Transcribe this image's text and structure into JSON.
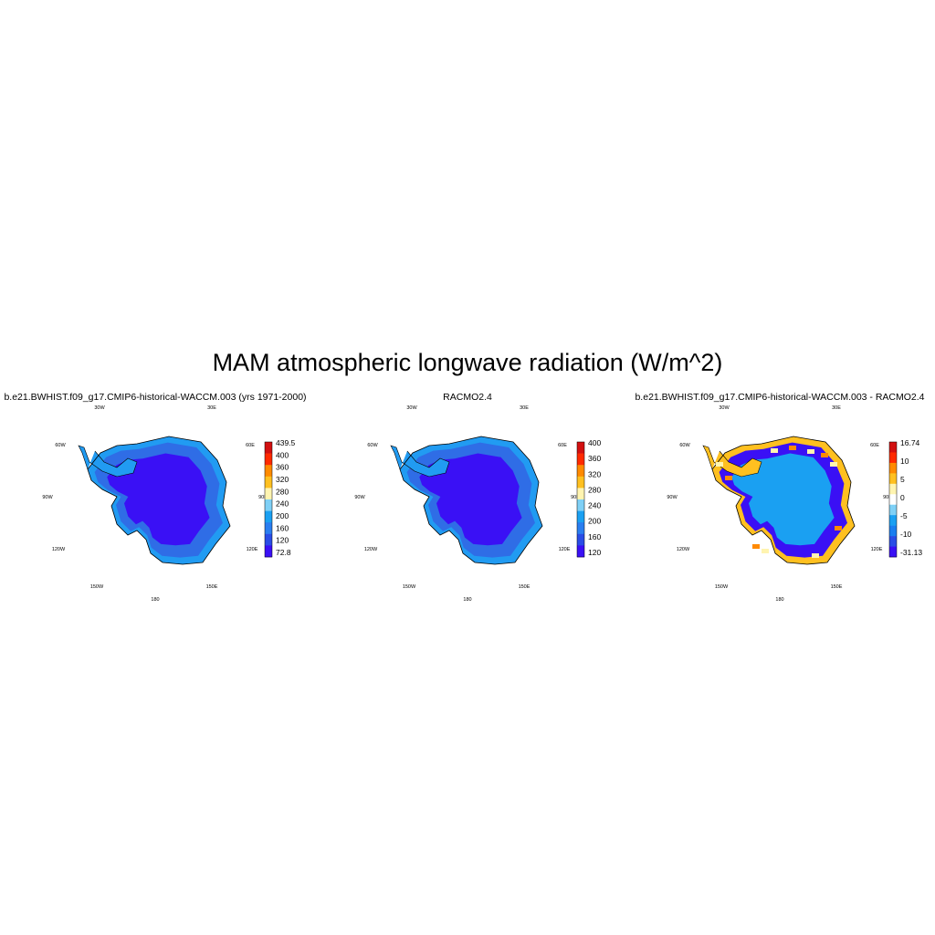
{
  "title": "MAM atmospheric longwave radiation (W/m^2)",
  "panels": [
    {
      "title": "b.e21.BWHIST.f09_g17.CMIP6-historical-WACCM.003 (yrs 1971-2000)",
      "interior_color": "#3a10f5",
      "ring_color": "#2f6de6",
      "rim_color": "#219bf2",
      "colorbar": {
        "colors": [
          "#3a10f5",
          "#2a4de6",
          "#2a7ef0",
          "#1aa0f2",
          "#7fd0f6",
          "#fff4b0",
          "#ffc020",
          "#ff8a00",
          "#ff2a00",
          "#d21010"
        ],
        "labels": [
          "439.5",
          "400",
          "360",
          "320",
          "280",
          "240",
          "200",
          "160",
          "120",
          "72.8"
        ]
      }
    },
    {
      "title": "RACMO2.4",
      "interior_color": "#3a10f5",
      "ring_color": "#2f6de6",
      "rim_color": "#219bf2",
      "colorbar": {
        "colors": [
          "#3a10f5",
          "#2a4de6",
          "#2a7ef0",
          "#1aa0f2",
          "#7fd0f6",
          "#fff4b0",
          "#ffc020",
          "#ff8a00",
          "#ff2a00",
          "#d21010"
        ],
        "labels": [
          "400",
          "360",
          "320",
          "280",
          "240",
          "200",
          "160",
          "120"
        ]
      }
    },
    {
      "title": "b.e21.BWHIST.f09_g17.CMIP6-historical-WACCM.003 - RACMO2.4",
      "interior_color": "#1aa0f2",
      "ring_color": "#3a10f5",
      "rim_color": "#ffc020",
      "colorbar": {
        "colors": [
          "#3a10f5",
          "#2a4de6",
          "#1a7ef0",
          "#1aa0f2",
          "#7fd0f6",
          "#ffffff",
          "#fff4b0",
          "#ffc020",
          "#ff8a00",
          "#ff2a00",
          "#d21010"
        ],
        "labels": [
          "16.74",
          "10",
          "5",
          "0",
          "-5",
          "-10",
          "-31.13"
        ]
      }
    }
  ],
  "longitude_labels": [
    "30W",
    "30E",
    "60W",
    "60E",
    "90W",
    "90E",
    "120W",
    "120E",
    "150W",
    "150E",
    "180"
  ]
}
